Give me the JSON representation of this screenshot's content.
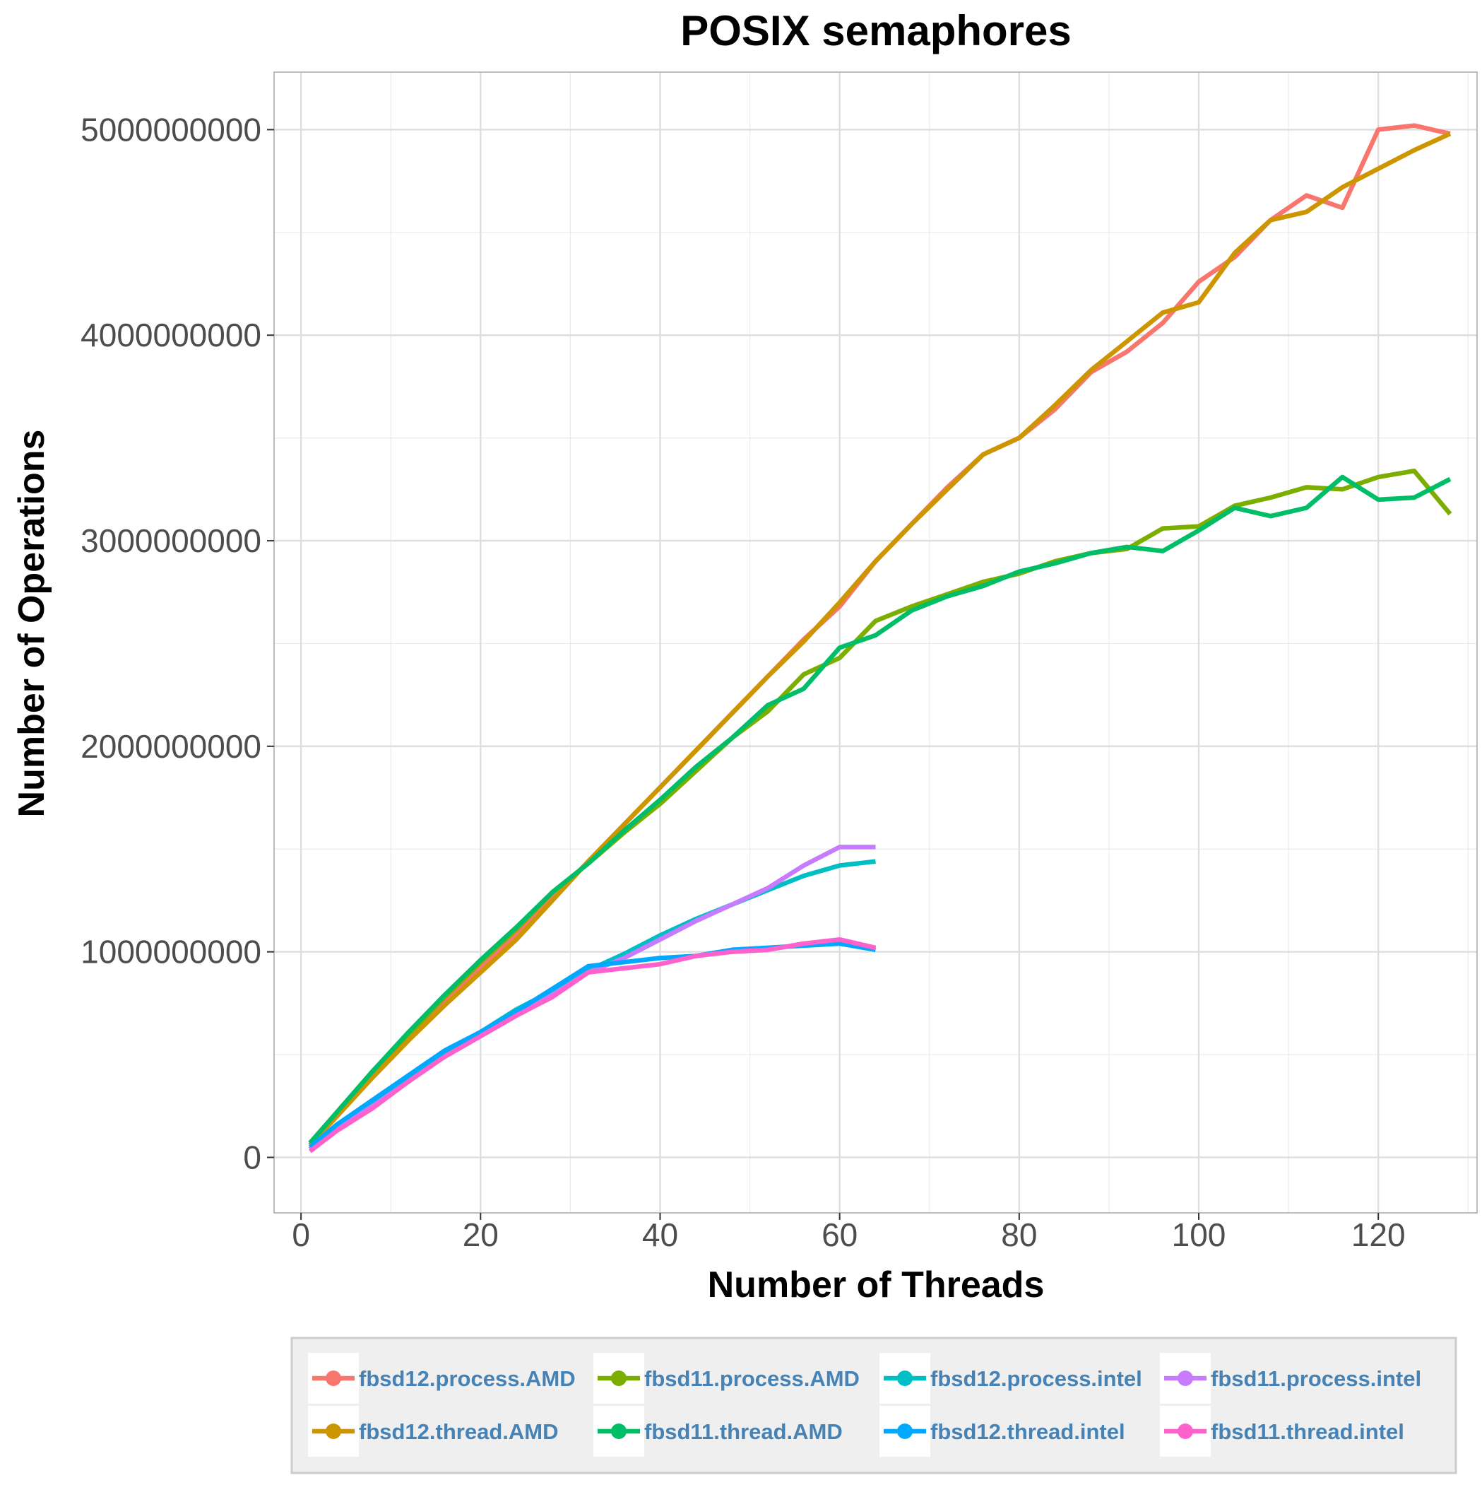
{
  "chart_data": {
    "type": "line",
    "title": "POSIX semaphores",
    "xlabel": "Number of Threads",
    "ylabel": "Number of Operations",
    "xlim": [
      -3,
      131
    ],
    "ylim": [
      -270000000,
      5280000000
    ],
    "x_ticks": [
      0,
      20,
      40,
      60,
      80,
      100,
      120
    ],
    "x_tick_labels": [
      "0",
      "20",
      "40",
      "60",
      "80",
      "100",
      "120"
    ],
    "y_ticks": [
      0,
      1000000000,
      2000000000,
      3000000000,
      4000000000,
      5000000000
    ],
    "y_tick_labels": [
      "0",
      "1000000000",
      "2000000000",
      "3000000000",
      "4000000000",
      "5000000000"
    ],
    "grid": true,
    "legend_position": "bottom",
    "series": [
      {
        "name": "fbsd12.process.AMD",
        "color": "#F8766D",
        "x": [
          1,
          4,
          8,
          12,
          16,
          20,
          24,
          28,
          32,
          36,
          40,
          44,
          48,
          52,
          56,
          60,
          64,
          68,
          72,
          76,
          80,
          84,
          88,
          92,
          96,
          100,
          104,
          108,
          112,
          116,
          120,
          124,
          128
        ],
        "y": [
          60000000,
          200000000,
          400000000,
          580000000,
          760000000,
          920000000,
          1080000000,
          1260000000,
          1440000000,
          1620000000,
          1800000000,
          1980000000,
          2160000000,
          2340000000,
          2520000000,
          2680000000,
          2900000000,
          3080000000,
          3260000000,
          3420000000,
          3500000000,
          3640000000,
          3820000000,
          3920000000,
          4060000000,
          4260000000,
          4380000000,
          4560000000,
          4680000000,
          4620000000,
          5000000000,
          5020000000,
          4980000000
        ]
      },
      {
        "name": "fbsd11.process.AMD",
        "color": "#7CAE00",
        "x": [
          1,
          4,
          8,
          12,
          16,
          20,
          24,
          28,
          32,
          36,
          40,
          44,
          48,
          52,
          56,
          60,
          64,
          68,
          72,
          76,
          80,
          84,
          88,
          92,
          96,
          100,
          104,
          108,
          112,
          116,
          120,
          124,
          128
        ],
        "y": [
          70000000,
          220000000,
          420000000,
          600000000,
          780000000,
          950000000,
          1110000000,
          1290000000,
          1430000000,
          1580000000,
          1720000000,
          1880000000,
          2040000000,
          2170000000,
          2350000000,
          2430000000,
          2610000000,
          2680000000,
          2740000000,
          2800000000,
          2840000000,
          2900000000,
          2940000000,
          2960000000,
          3060000000,
          3070000000,
          3170000000,
          3210000000,
          3260000000,
          3250000000,
          3310000000,
          3340000000,
          3130000000
        ]
      },
      {
        "name": "fbsd12.process.intel",
        "color": "#00BFC4",
        "x": [
          1,
          4,
          8,
          12,
          16,
          20,
          24,
          28,
          32,
          36,
          40,
          44,
          48,
          52,
          56,
          60,
          64
        ],
        "y": [
          40000000,
          150000000,
          270000000,
          390000000,
          510000000,
          610000000,
          720000000,
          810000000,
          910000000,
          990000000,
          1080000000,
          1160000000,
          1230000000,
          1300000000,
          1370000000,
          1420000000,
          1440000000
        ]
      },
      {
        "name": "fbsd11.process.intel",
        "color": "#C77CFF",
        "x": [
          1,
          4,
          8,
          12,
          16,
          20,
          24,
          28,
          32,
          36,
          40,
          44,
          48,
          52,
          56,
          60,
          64
        ],
        "y": [
          40000000,
          140000000,
          250000000,
          370000000,
          490000000,
          590000000,
          690000000,
          790000000,
          900000000,
          970000000,
          1060000000,
          1150000000,
          1230000000,
          1310000000,
          1420000000,
          1510000000,
          1510000000
        ]
      },
      {
        "name": "fbsd12.thread.AMD",
        "color": "#CD9600",
        "x": [
          1,
          4,
          8,
          12,
          16,
          20,
          24,
          28,
          32,
          36,
          40,
          44,
          48,
          52,
          56,
          60,
          64,
          68,
          72,
          76,
          80,
          84,
          88,
          92,
          96,
          100,
          104,
          108,
          112,
          116,
          120,
          124,
          128
        ],
        "y": [
          60000000,
          200000000,
          390000000,
          570000000,
          740000000,
          900000000,
          1060000000,
          1250000000,
          1440000000,
          1620000000,
          1800000000,
          1980000000,
          2160000000,
          2340000000,
          2510000000,
          2700000000,
          2900000000,
          3080000000,
          3250000000,
          3420000000,
          3500000000,
          3660000000,
          3830000000,
          3970000000,
          4110000000,
          4160000000,
          4400000000,
          4560000000,
          4600000000,
          4720000000,
          4810000000,
          4900000000,
          4980000000
        ]
      },
      {
        "name": "fbsd11.thread.AMD",
        "color": "#00BE67",
        "x": [
          1,
          4,
          8,
          12,
          16,
          20,
          24,
          28,
          32,
          36,
          40,
          44,
          48,
          52,
          56,
          60,
          64,
          68,
          72,
          76,
          80,
          84,
          88,
          92,
          96,
          100,
          104,
          108,
          112,
          116,
          120,
          124,
          128
        ],
        "y": [
          70000000,
          220000000,
          420000000,
          610000000,
          790000000,
          960000000,
          1120000000,
          1290000000,
          1430000000,
          1590000000,
          1740000000,
          1900000000,
          2040000000,
          2200000000,
          2280000000,
          2480000000,
          2540000000,
          2660000000,
          2730000000,
          2780000000,
          2850000000,
          2890000000,
          2940000000,
          2970000000,
          2950000000,
          3050000000,
          3160000000,
          3120000000,
          3160000000,
          3310000000,
          3200000000,
          3210000000,
          3300000000
        ]
      },
      {
        "name": "fbsd12.thread.intel",
        "color": "#00A9FF",
        "x": [
          1,
          4,
          8,
          12,
          16,
          20,
          24,
          28,
          32,
          36,
          40,
          44,
          48,
          52,
          56,
          60,
          64
        ],
        "y": [
          50000000,
          160000000,
          280000000,
          400000000,
          520000000,
          610000000,
          710000000,
          820000000,
          930000000,
          950000000,
          970000000,
          980000000,
          1010000000,
          1020000000,
          1030000000,
          1040000000,
          1010000000
        ]
      },
      {
        "name": "fbsd11.thread.intel",
        "color": "#FF61CC",
        "x": [
          1,
          4,
          8,
          12,
          16,
          20,
          24,
          28,
          32,
          36,
          40,
          44,
          48,
          52,
          56,
          60,
          64
        ],
        "y": [
          30000000,
          130000000,
          240000000,
          370000000,
          490000000,
          590000000,
          690000000,
          780000000,
          900000000,
          920000000,
          940000000,
          980000000,
          1000000000,
          1010000000,
          1040000000,
          1060000000,
          1020000000
        ]
      }
    ],
    "legend_order": [
      "fbsd12.process.AMD",
      "fbsd11.process.AMD",
      "fbsd12.process.intel",
      "fbsd11.process.intel",
      "fbsd12.thread.AMD",
      "fbsd11.thread.AMD",
      "fbsd12.thread.intel",
      "fbsd11.thread.intel"
    ],
    "colors": {
      "legend_text": "#4682B4",
      "legend_background": "#EFEFEF",
      "grid": "#DEDEDE",
      "panel_border": "#BDBDBD",
      "tick_label": "#4D4D4D"
    }
  }
}
